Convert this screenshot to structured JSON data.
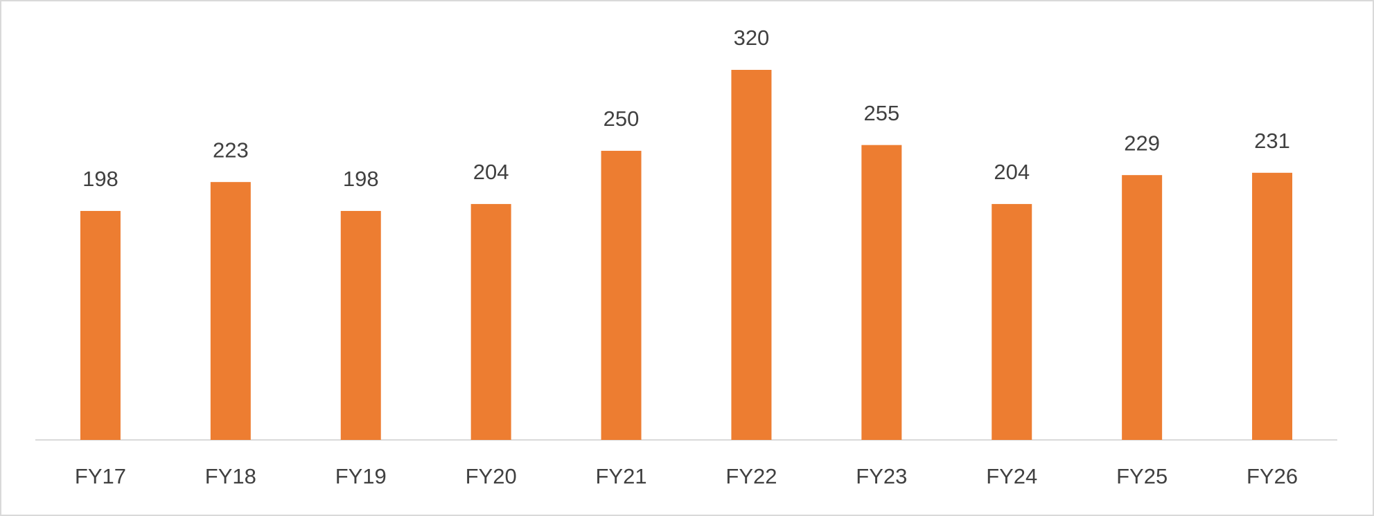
{
  "chart_data": {
    "type": "bar",
    "categories": [
      "FY17",
      "FY18",
      "FY19",
      "FY20",
      "FY21",
      "FY22",
      "FY23",
      "FY24",
      "FY25",
      "FY26"
    ],
    "values": [
      198,
      223,
      198,
      204,
      250,
      320,
      255,
      204,
      229,
      231
    ],
    "color": "#ed7d31"
  }
}
